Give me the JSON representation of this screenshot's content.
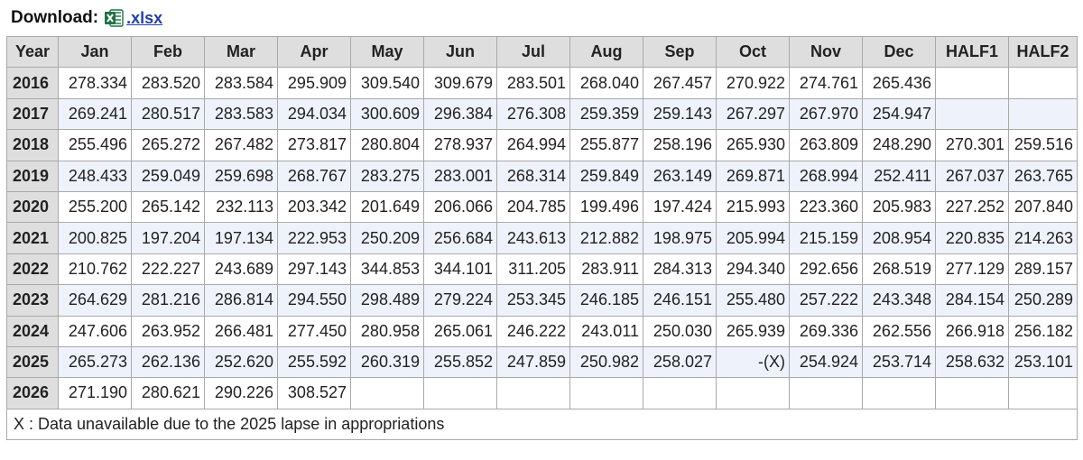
{
  "download": {
    "label": "Download:",
    "icon": "excel-file-icon",
    "link_text": ".xlsx",
    "icon_color": "#1e7145"
  },
  "table": {
    "headers": [
      "Year",
      "Jan",
      "Feb",
      "Mar",
      "Apr",
      "May",
      "Jun",
      "Jul",
      "Aug",
      "Sep",
      "Oct",
      "Nov",
      "Dec",
      "HALF1",
      "HALF2"
    ],
    "rows": [
      {
        "year": "2016",
        "values": [
          "278.334",
          "283.520",
          "283.584",
          "295.909",
          "309.540",
          "309.679",
          "283.501",
          "268.040",
          "267.457",
          "270.922",
          "274.761",
          "265.436",
          "",
          ""
        ]
      },
      {
        "year": "2017",
        "values": [
          "269.241",
          "280.517",
          "283.583",
          "294.034",
          "300.609",
          "296.384",
          "276.308",
          "259.359",
          "259.143",
          "267.297",
          "267.970",
          "254.947",
          "",
          ""
        ]
      },
      {
        "year": "2018",
        "values": [
          "255.496",
          "265.272",
          "267.482",
          "273.817",
          "280.804",
          "278.937",
          "264.994",
          "255.877",
          "258.196",
          "265.930",
          "263.809",
          "248.290",
          "270.301",
          "259.516"
        ]
      },
      {
        "year": "2019",
        "values": [
          "248.433",
          "259.049",
          "259.698",
          "268.767",
          "283.275",
          "283.001",
          "268.314",
          "259.849",
          "263.149",
          "269.871",
          "268.994",
          "252.411",
          "267.037",
          "263.765"
        ]
      },
      {
        "year": "2020",
        "values": [
          "255.200",
          "265.142",
          "232.113",
          "203.342",
          "201.649",
          "206.066",
          "204.785",
          "199.496",
          "197.424",
          "215.993",
          "223.360",
          "205.983",
          "227.252",
          "207.840"
        ]
      },
      {
        "year": "2021",
        "values": [
          "200.825",
          "197.204",
          "197.134",
          "222.953",
          "250.209",
          "256.684",
          "243.613",
          "212.882",
          "198.975",
          "205.994",
          "215.159",
          "208.954",
          "220.835",
          "214.263"
        ]
      },
      {
        "year": "2022",
        "values": [
          "210.762",
          "222.227",
          "243.689",
          "297.143",
          "344.853",
          "344.101",
          "311.205",
          "283.911",
          "284.313",
          "294.340",
          "292.656",
          "268.519",
          "277.129",
          "289.157"
        ]
      },
      {
        "year": "2023",
        "values": [
          "264.629",
          "281.216",
          "286.814",
          "294.550",
          "298.489",
          "279.224",
          "253.345",
          "246.185",
          "246.151",
          "255.480",
          "257.222",
          "243.348",
          "284.154",
          "250.289"
        ]
      },
      {
        "year": "2024",
        "values": [
          "247.606",
          "263.952",
          "266.481",
          "277.450",
          "280.958",
          "265.061",
          "246.222",
          "243.011",
          "250.030",
          "265.939",
          "269.336",
          "262.556",
          "266.918",
          "256.182"
        ]
      },
      {
        "year": "2025",
        "values": [
          "265.273",
          "262.136",
          "252.620",
          "255.592",
          "260.319",
          "255.852",
          "247.859",
          "250.982",
          "258.027",
          "-(X)",
          "254.924",
          "253.714",
          "258.632",
          "253.101"
        ]
      },
      {
        "year": "2026",
        "values": [
          "271.190",
          "280.621",
          "290.226",
          "308.527",
          "",
          "",
          "",
          "",
          "",
          "",
          "",
          "",
          "",
          ""
        ]
      }
    ],
    "footnote": "X : Data unavailable due to the 2025 lapse in appropriations"
  },
  "colors": {
    "header_bg": "#dedede",
    "alt_row_bg": "#eef2fb",
    "border": "#a9a9a9",
    "link": "#2340a8"
  }
}
